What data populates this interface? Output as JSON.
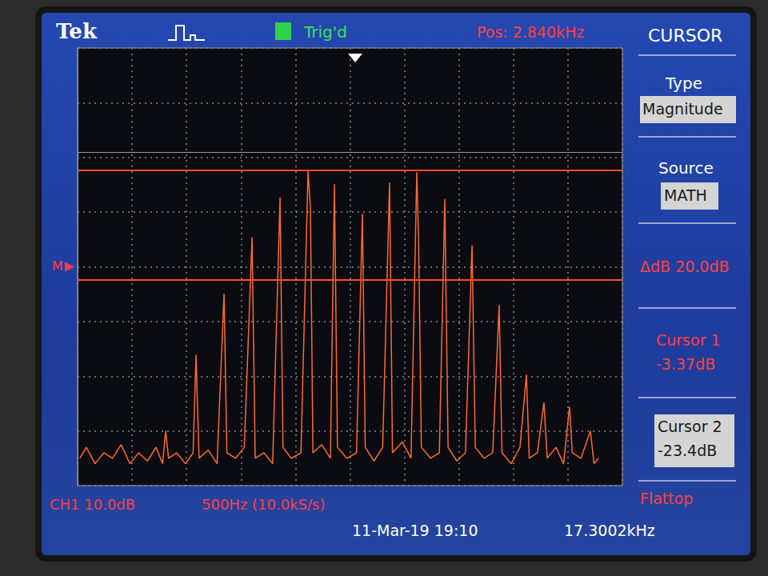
{
  "chart_data": {
    "type": "line",
    "color": "#ff6a2a",
    "grid": true,
    "tick_labels": false,
    "xlim": [
      340,
      5340
    ],
    "xticks": [
      340,
      840,
      1340,
      1840,
      2340,
      2840,
      3340,
      3840,
      4340,
      4840,
      5340
    ],
    "ylim": [
      -61,
      19
    ],
    "yticks": [
      -61,
      -51,
      -41,
      -31,
      -21,
      -11,
      -1,
      9,
      19
    ],
    "x": [
      360,
      420,
      500,
      580,
      660,
      740,
      820,
      900,
      980,
      1060,
      1120,
      1148,
      1175,
      1250,
      1330,
      1400,
      1427,
      1455,
      1540,
      1620,
      1684,
      1710,
      1790,
      1870,
      1941,
      1970,
      2050,
      2130,
      2198,
      2225,
      2300,
      2390,
      2455,
      2477,
      2500,
      2580,
      2660,
      2697,
      2725,
      2810,
      2900,
      2954,
      2980,
      3060,
      3140,
      3203,
      3230,
      3320,
      3400,
      3453,
      3470,
      3495,
      3580,
      3660,
      3710,
      3740,
      3820,
      3900,
      3960,
      3990,
      4070,
      4150,
      4209,
      4235,
      4320,
      4400,
      4459,
      4485,
      4560,
      4620,
      4650,
      4730,
      4800,
      4855,
      4880,
      4960,
      5046,
      5080,
      5120
    ],
    "values": [
      -56,
      -54,
      -57,
      -55,
      -56,
      -53.5,
      -57,
      -55,
      -56.5,
      -54,
      -57,
      -51.0,
      -56,
      -55,
      -57,
      -55,
      -37.1,
      -56,
      -54.5,
      -57,
      -25.9,
      -55,
      -56,
      -54,
      -15.6,
      -56,
      -55,
      -57,
      -8.3,
      -54,
      -56,
      -55,
      -3.5,
      -10.4,
      -55,
      -53.5,
      -56,
      -5.9,
      -54,
      -56,
      -55,
      -11.3,
      -54,
      -56.5,
      -54,
      -5.6,
      -55,
      -53,
      -56,
      -3.7,
      -16.7,
      -54,
      -56,
      -55,
      -8.6,
      -54,
      -56.5,
      -55,
      -17.1,
      -54,
      -56,
      -55,
      -28.0,
      -55,
      -57,
      -54,
      -40.7,
      -56,
      -55,
      -45.8,
      -56,
      -54,
      -57,
      -46.6,
      -55,
      -56,
      -51.0,
      -57,
      -56
    ],
    "cursors": [
      {
        "label": "Cursor 1",
        "value": -3.37,
        "value_label": "-3.37dB"
      },
      {
        "label": "Cursor 2",
        "value": -23.4,
        "value_label": "-23.4dB"
      }
    ],
    "reference": {
      "label": "M",
      "value": -21.0
    },
    "annotations": {
      "header": [
        "Tek",
        "Trig'd",
        "Pos: 2.840kHz"
      ],
      "menu": [
        "CURSOR",
        "Type",
        "Magnitude",
        "Source",
        "MATH"
      ],
      "cursor_readout": "ΔdB 20.0dB",
      "footer": [
        "CH1 10.0dB",
        "500Hz (10.0kS/s)",
        "Flattop",
        "11-Mar-19 19:10",
        "17.3002kHz"
      ]
    }
  }
}
